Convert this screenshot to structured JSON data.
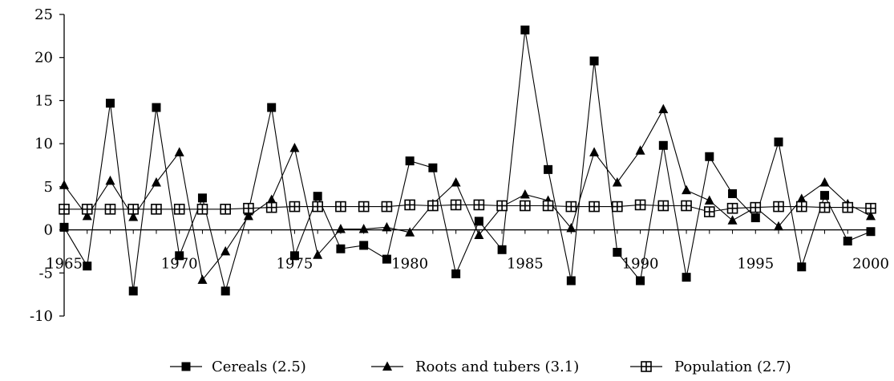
{
  "chart_data": {
    "type": "line",
    "title": "",
    "xlabel": "",
    "ylabel": "",
    "xlim": [
      1965,
      2000
    ],
    "ylim": [
      -10,
      25
    ],
    "y_ticks": [
      -10,
      -5,
      0,
      5,
      10,
      15,
      20,
      25
    ],
    "x_ticks": [
      1965,
      1970,
      1975,
      1980,
      1985,
      1990,
      1995,
      2000
    ],
    "grid": false,
    "legend_position": "bottom",
    "x": [
      1965,
      1966,
      1967,
      1968,
      1969,
      1970,
      1971,
      1972,
      1973,
      1974,
      1975,
      1976,
      1977,
      1978,
      1979,
      1980,
      1981,
      1982,
      1983,
      1984,
      1985,
      1986,
      1987,
      1988,
      1989,
      1990,
      1991,
      1992,
      1993,
      1994,
      1995,
      1996,
      1997,
      1998,
      1999,
      2000
    ],
    "series": [
      {
        "name": "Cereals (2.5)",
        "marker": "filled-square",
        "color": "#000000",
        "values": [
          0.3,
          -4.2,
          14.7,
          -7.1,
          14.2,
          -3.0,
          3.7,
          -7.1,
          2.2,
          14.2,
          -3.0,
          3.9,
          -2.2,
          -1.8,
          -3.4,
          8.0,
          7.2,
          -5.1,
          1.0,
          -2.3,
          23.2,
          7.0,
          -5.9,
          19.6,
          -2.6,
          -5.9,
          9.8,
          -5.5,
          8.5,
          4.2,
          1.4,
          10.2,
          -4.3,
          4.0,
          -1.3,
          -0.2
        ]
      },
      {
        "name": "Roots and tubers (3.1)",
        "marker": "filled-triangle",
        "color": "#000000",
        "values": [
          5.2,
          1.6,
          5.7,
          1.5,
          5.5,
          9.0,
          -5.8,
          -2.5,
          1.6,
          3.5,
          9.5,
          -2.9,
          0.1,
          0.1,
          0.3,
          -0.3,
          3.0,
          5.5,
          -0.6,
          2.7,
          4.1,
          3.4,
          0.2,
          9.0,
          5.5,
          9.2,
          14.0,
          4.6,
          3.4,
          1.1,
          2.6,
          0.4,
          3.6,
          5.5,
          3.0,
          1.6
        ]
      },
      {
        "name": "Population (2.7)",
        "marker": "open-cross-square",
        "color": "#000000",
        "values": [
          2.4,
          2.4,
          2.4,
          2.4,
          2.4,
          2.4,
          2.4,
          2.4,
          2.5,
          2.6,
          2.7,
          2.7,
          2.7,
          2.7,
          2.7,
          2.9,
          2.8,
          2.9,
          2.9,
          2.8,
          2.8,
          2.8,
          2.7,
          2.7,
          2.7,
          2.9,
          2.8,
          2.8,
          2.1,
          2.5,
          2.6,
          2.7,
          2.7,
          2.6,
          2.6,
          2.5
        ]
      }
    ]
  }
}
